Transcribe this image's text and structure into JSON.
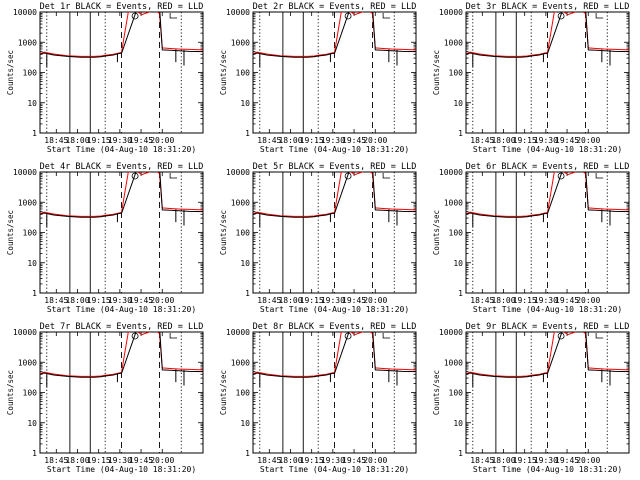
{
  "chart_data": {
    "type": "line",
    "layout": "3x3 grid",
    "shared": {
      "xlabel": "Start Time (04-Aug-10 18:31:20)",
      "ylabel": "Counts/sec",
      "xticks": [
        "18:45",
        "18:00",
        "19:15",
        "19:30",
        "19:45",
        "20:00"
      ],
      "xlim_minutes": [
        0,
        120
      ],
      "ylim": [
        1,
        10000
      ],
      "yscale": "log",
      "yticks": [
        "1",
        "10",
        "100",
        "1000",
        "10000"
      ],
      "grid": false,
      "series_colors": {
        "events": "#000000",
        "lld": "#ff0000"
      }
    },
    "panels": [
      {
        "title": "Det 1r BLACK = Events, RED = LLD"
      },
      {
        "title": "Det 2r BLACK = Events, RED = LLD"
      },
      {
        "title": "Det 3r BLACK = Events, RED = LLD"
      },
      {
        "title": "Det 4r BLACK = Events, RED = LLD"
      },
      {
        "title": "Det 5r BLACK = Events, RED = LLD"
      },
      {
        "title": "Det 6r BLACK = Events, RED = LLD"
      },
      {
        "title": "Det 7r BLACK = Events, RED = LLD"
      },
      {
        "title": "Det 8r BLACK = Events, RED = LLD"
      },
      {
        "title": "Det 9r BLACK = Events, RED = LLD"
      }
    ],
    "series": [
      {
        "color_role": "lld",
        "x_minutes": [
          0,
          3,
          10,
          20,
          30,
          40,
          45,
          48,
          54,
          56,
          60,
          65,
          71,
          72,
          75,
          80,
          84,
          88,
          90,
          96,
          102,
          110,
          120
        ],
        "values": [
          420,
          470,
          410,
          360,
          340,
          340,
          350,
          370,
          400,
          420,
          460,
          10000,
          11000,
          10000,
          8200,
          9800,
          11500,
          9000,
          650,
          620,
          600,
          580,
          560
        ]
      },
      {
        "color_role": "events",
        "x_minutes": [
          0,
          3,
          10,
          20,
          30,
          40,
          45,
          48,
          54,
          56,
          59,
          60,
          72,
          75,
          88,
          90,
          96,
          102,
          110,
          120
        ],
        "values": [
          400,
          440,
          380,
          340,
          320,
          320,
          330,
          350,
          380,
          400,
          430,
          420,
          15000,
          15000,
          15000,
          560,
          540,
          520,
          500,
          490
        ]
      }
    ],
    "events_dips": [
      {
        "x_minutes": 5,
        "values": [
          420,
          150
        ]
      },
      {
        "x_minutes": 57,
        "values": [
          430,
          220
        ]
      },
      {
        "x_minutes": 100,
        "values": [
          580,
          220
        ]
      },
      {
        "x_minutes": 106,
        "values": [
          560,
          170
        ]
      }
    ],
    "marker_lines": [
      {
        "x_minutes": 5,
        "style": "dotted"
      },
      {
        "x_minutes": 22,
        "style": "solid"
      },
      {
        "x_minutes": 37,
        "style": "solid"
      },
      {
        "x_minutes": 48,
        "style": "dotted"
      },
      {
        "x_minutes": 60,
        "style": "dashed"
      },
      {
        "x_minutes": 88,
        "style": "dashed"
      },
      {
        "x_minutes": 104,
        "style": "dotted"
      }
    ],
    "top_symbols": [
      {
        "x_minutes": 70,
        "symbol": "circle"
      },
      {
        "x_minutes": 98,
        "symbol": "step"
      }
    ]
  }
}
